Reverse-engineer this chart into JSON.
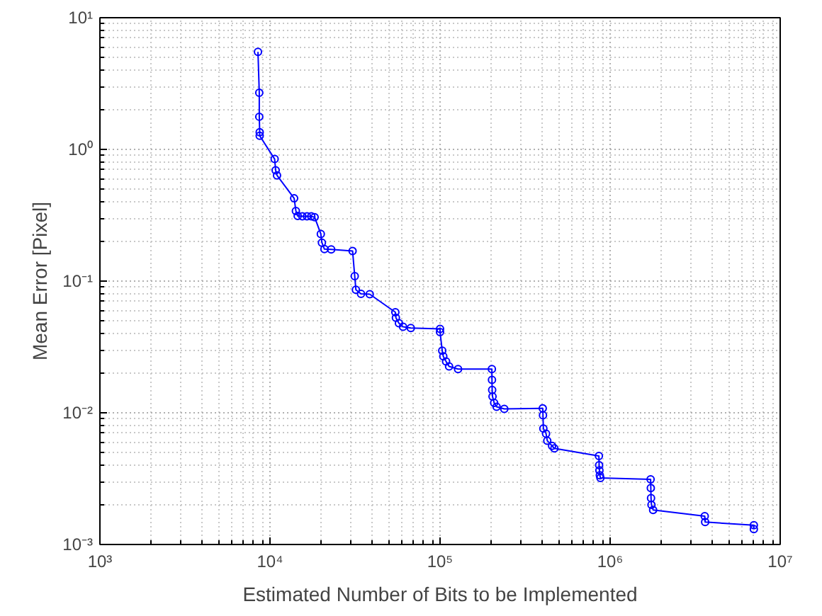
{
  "chart_data": {
    "type": "line",
    "xlabel": "Estimated Number of Bits to be Implemented",
    "ylabel": "Mean Error [Pixel]",
    "log": "xy",
    "grid": true,
    "marker": "circle",
    "line_style": "solid",
    "xlim": [
      1000,
      10000000
    ],
    "ylim": [
      0.001,
      10
    ],
    "xticks": [
      {
        "value": 1000,
        "label": "10³"
      },
      {
        "value": 10000,
        "label": "10⁴"
      },
      {
        "value": 100000,
        "label": "10⁵"
      },
      {
        "value": 1000000,
        "label": "10⁶"
      },
      {
        "value": 10000000,
        "label": "10⁷"
      }
    ],
    "yticks": [
      {
        "value": 0.001,
        "label": "10⁻³"
      },
      {
        "value": 0.01,
        "label": "10⁻²"
      },
      {
        "value": 0.1,
        "label": "10⁻¹"
      },
      {
        "value": 1,
        "label": "10⁰"
      },
      {
        "value": 10,
        "label": "10¹"
      }
    ],
    "series": [
      {
        "color": "#0000ff",
        "x": [
          8500,
          8650,
          8650,
          8700,
          8700,
          10650,
          10800,
          11000,
          13870,
          14200,
          14550,
          15500,
          16500,
          17500,
          18300,
          19900,
          20200,
          20900,
          22900,
          30600,
          31500,
          32000,
          34300,
          38600,
          54600,
          55000,
          57300,
          60600,
          67300,
          100000,
          100000,
          103000,
          104500,
          108500,
          113000,
          127600,
          201700,
          202000,
          202500,
          203500,
          208000,
          215000,
          238600,
          401700,
          403000,
          405000,
          420000,
          427000,
          455800,
          470000,
          859000,
          862000,
          865000,
          870000,
          877000,
          1730000,
          1735000,
          1740000,
          1750000,
          1790000,
          3600000,
          3620000,
          7000000,
          7000000
        ],
        "values": [
          5.5,
          2.69,
          1.77,
          1.35,
          1.27,
          0.845,
          0.695,
          0.635,
          0.425,
          0.341,
          0.312,
          0.31,
          0.31,
          0.31,
          0.306,
          0.228,
          0.196,
          0.175,
          0.174,
          0.169,
          0.109,
          0.086,
          0.08,
          0.0795,
          0.058,
          0.0527,
          0.0479,
          0.045,
          0.044,
          0.0434,
          0.041,
          0.0296,
          0.0268,
          0.0245,
          0.0225,
          0.0215,
          0.0215,
          0.0178,
          0.0149,
          0.0133,
          0.0119,
          0.0111,
          0.0107,
          0.0108,
          0.00957,
          0.00759,
          0.00695,
          0.00614,
          0.00561,
          0.00537,
          0.0047,
          0.004,
          0.00366,
          0.00335,
          0.0032,
          0.00312,
          0.00268,
          0.00225,
          0.002,
          0.00183,
          0.00164,
          0.00148,
          0.0014,
          0.00131
        ]
      }
    ]
  }
}
